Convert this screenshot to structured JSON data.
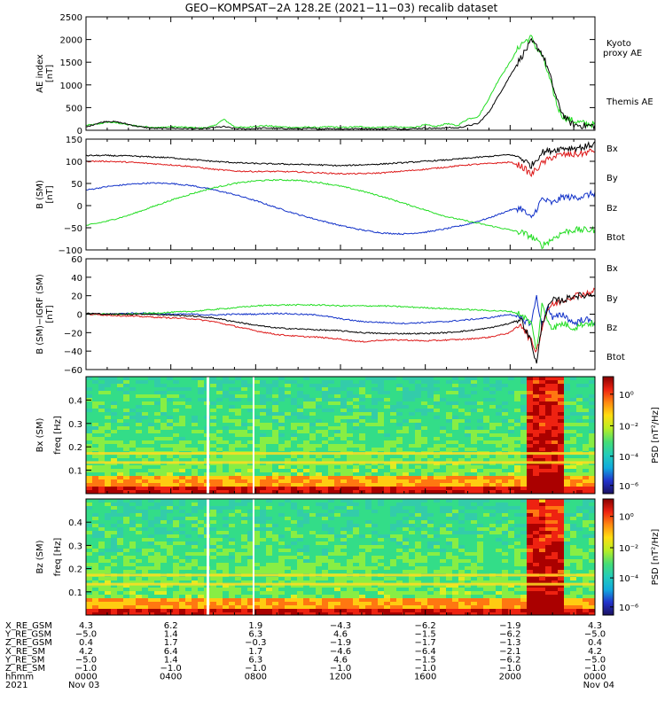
{
  "title": "GEO−KOMPSAT−2A 128.2E (2021−11−03) recalib dataset",
  "colors": {
    "kyoto": "#22dd22",
    "themis": "#000000",
    "bx": "#1030c8",
    "by": "#22dd22",
    "bz": "#dd1818",
    "btot": "#000000"
  },
  "chart_data": [
    {
      "type": "line",
      "panel": "ae",
      "ylabel_top": "AE index",
      "ylabel_unit": "[nT]",
      "yticks": [
        0,
        500,
        1000,
        1500,
        2000,
        2500
      ],
      "ylim": [
        0,
        2500
      ],
      "xlim_hours": [
        0,
        24
      ],
      "legend": [
        {
          "label": "Kyoto\nproxy AE",
          "color_key": "kyoto"
        },
        {
          "label": "Themis AE",
          "color_key": "themis"
        }
      ],
      "series": [
        {
          "name": "Kyoto proxy AE",
          "color_key": "kyoto",
          "x": [
            0,
            0.5,
            1,
            1.5,
            2,
            2.5,
            3,
            3.5,
            4,
            4.5,
            5,
            5.5,
            6,
            6.5,
            7,
            7.5,
            8,
            8.5,
            9,
            9.5,
            10,
            10.5,
            11,
            11.5,
            12,
            12.5,
            13,
            13.5,
            14,
            14.5,
            15,
            15.5,
            16,
            16.5,
            17,
            17.5,
            18,
            18.5,
            19,
            19.5,
            20,
            20.5,
            21,
            21.25,
            21.5,
            21.75,
            22,
            22.25,
            22.5,
            22.75,
            23,
            23.5,
            24
          ],
          "y": [
            110,
            130,
            180,
            160,
            120,
            90,
            70,
            60,
            80,
            70,
            60,
            50,
            90,
            240,
            80,
            60,
            90,
            100,
            80,
            70,
            60,
            70,
            60,
            80,
            60,
            70,
            80,
            60,
            70,
            80,
            60,
            70,
            120,
            80,
            150,
            100,
            250,
            300,
            700,
            1150,
            1500,
            1900,
            2050,
            1800,
            1650,
            1300,
            900,
            500,
            300,
            250,
            200,
            150,
            130
          ]
        },
        {
          "name": "Themis AE",
          "color_key": "themis",
          "x": [
            0,
            0.5,
            1,
            1.5,
            2,
            2.5,
            3,
            3.5,
            4,
            4.5,
            5,
            5.5,
            6,
            6.5,
            7,
            7.5,
            8,
            8.5,
            9,
            9.5,
            10,
            10.5,
            11,
            11.5,
            12,
            12.5,
            13,
            13.5,
            14,
            14.5,
            15,
            15.5,
            16,
            16.5,
            17,
            17.5,
            18,
            18.5,
            19,
            19.5,
            20,
            20.5,
            21,
            21.25,
            21.5,
            21.75,
            22,
            22.25,
            22.5,
            22.75,
            23,
            23.5,
            24
          ],
          "y": [
            70,
            150,
            200,
            180,
            130,
            80,
            50,
            40,
            50,
            40,
            40,
            30,
            60,
            80,
            40,
            30,
            40,
            50,
            40,
            40,
            30,
            40,
            30,
            40,
            30,
            30,
            40,
            30,
            30,
            40,
            30,
            40,
            50,
            40,
            60,
            50,
            100,
            150,
            400,
            800,
            1200,
            1600,
            1950,
            1850,
            1700,
            1400,
            1000,
            600,
            350,
            200,
            120,
            100,
            100
          ]
        }
      ]
    },
    {
      "type": "line",
      "panel": "bsm",
      "ylabel_top": "B (SM)",
      "ylabel_unit": "[nT]",
      "yticks": [
        -100,
        -50,
        0,
        50,
        100,
        150
      ],
      "ylim": [
        -100,
        150
      ],
      "xlim_hours": [
        0,
        24
      ],
      "legend": [
        {
          "label": "Bx",
          "color_key": "bx"
        },
        {
          "label": "By",
          "color_key": "by"
        },
        {
          "label": "Bz",
          "color_key": "bz"
        },
        {
          "label": "Btot",
          "color_key": "btot"
        }
      ],
      "series": [
        {
          "name": "Bx",
          "color_key": "bx",
          "x": [
            0,
            1,
            2,
            3,
            4,
            5,
            6,
            7,
            8,
            9,
            10,
            11,
            12,
            13,
            14,
            15,
            16,
            17,
            18,
            19,
            20,
            20.5,
            21,
            21.5,
            22,
            22.5,
            23,
            23.5,
            24
          ],
          "y": [
            35,
            43,
            48,
            51,
            50,
            45,
            36,
            25,
            11,
            -5,
            -20,
            -33,
            -45,
            -55,
            -62,
            -64,
            -60,
            -52,
            -42,
            -28,
            -10,
            -5,
            -30,
            15,
            5,
            20,
            18,
            22,
            28
          ]
        },
        {
          "name": "By",
          "color_key": "by",
          "x": [
            0,
            1,
            2,
            3,
            4,
            5,
            6,
            7,
            8,
            9,
            10,
            11,
            12,
            13,
            14,
            15,
            16,
            17,
            18,
            19,
            20,
            20.5,
            21,
            21.5,
            22,
            22.5,
            23,
            23.5,
            24
          ],
          "y": [
            -45,
            -35,
            -22,
            -5,
            12,
            27,
            40,
            50,
            56,
            58,
            57,
            52,
            44,
            33,
            20,
            5,
            -10,
            -25,
            -35,
            -45,
            -55,
            -60,
            -70,
            -90,
            -75,
            -60,
            -55,
            -55,
            -55
          ]
        },
        {
          "name": "Bz",
          "color_key": "bz",
          "x": [
            0,
            1,
            2,
            3,
            4,
            5,
            6,
            7,
            8,
            9,
            10,
            11,
            12,
            13,
            14,
            15,
            16,
            17,
            18,
            19,
            20,
            20.5,
            21,
            21.5,
            22,
            22.5,
            23,
            23.5,
            24
          ],
          "y": [
            100,
            100,
            98,
            95,
            92,
            88,
            82,
            78,
            77,
            77,
            76,
            74,
            72,
            72,
            74,
            78,
            82,
            87,
            92,
            95,
            98,
            90,
            70,
            95,
            110,
            115,
            115,
            118,
            125
          ]
        },
        {
          "name": "Btot",
          "color_key": "btot",
          "x": [
            0,
            1,
            2,
            3,
            4,
            5,
            6,
            7,
            8,
            9,
            10,
            11,
            12,
            13,
            14,
            15,
            16,
            17,
            18,
            19,
            20,
            20.5,
            21,
            21.5,
            22,
            22.5,
            23,
            23.5,
            24
          ],
          "y": [
            113,
            113,
            112,
            110,
            108,
            104,
            100,
            97,
            95,
            94,
            93,
            92,
            90,
            92,
            94,
            97,
            100,
            103,
            107,
            111,
            115,
            108,
            90,
            120,
            125,
            130,
            130,
            132,
            140
          ]
        }
      ]
    },
    {
      "type": "line",
      "panel": "bigrf",
      "ylabel_top": "B (SM)−IGRF (SM)",
      "ylabel_unit": "[nT]",
      "yticks": [
        -60,
        -40,
        -20,
        0,
        20,
        40,
        60
      ],
      "ylim": [
        -60,
        60
      ],
      "xlim_hours": [
        0,
        24
      ],
      "legend": [
        {
          "label": "Bx",
          "color_key": "bx"
        },
        {
          "label": "By",
          "color_key": "by"
        },
        {
          "label": "Bz",
          "color_key": "bz"
        },
        {
          "label": "Btot",
          "color_key": "btot"
        }
      ],
      "series": [
        {
          "name": "Bx",
          "color_key": "bx",
          "x": [
            0,
            1,
            2,
            3,
            4,
            5,
            6,
            7,
            8,
            9,
            10,
            11,
            12,
            13,
            14,
            15,
            16,
            17,
            18,
            19,
            20,
            20.5,
            21,
            21.25,
            21.5,
            21.75,
            22,
            22.5,
            23,
            23.5,
            24
          ],
          "y": [
            0,
            0,
            1,
            1,
            0,
            0,
            -1,
            0,
            0,
            1,
            0,
            -1,
            -5,
            -8,
            -9,
            -10,
            -9,
            -8,
            -6,
            -4,
            0,
            -5,
            -10,
            20,
            -15,
            10,
            -5,
            0,
            -10,
            -5,
            -10
          ]
        },
        {
          "name": "By",
          "color_key": "by",
          "x": [
            0,
            1,
            2,
            3,
            4,
            5,
            6,
            7,
            8,
            9,
            10,
            11,
            12,
            13,
            14,
            15,
            16,
            17,
            18,
            19,
            20,
            20.5,
            21,
            21.25,
            21.5,
            21.75,
            22,
            22.5,
            23,
            23.5,
            24
          ],
          "y": [
            0,
            0,
            0,
            1,
            2,
            3,
            5,
            7,
            9,
            10,
            10,
            10,
            9,
            9,
            9,
            8,
            7,
            6,
            5,
            4,
            3,
            0,
            -10,
            -40,
            10,
            -5,
            -15,
            -10,
            -15,
            -10,
            -10
          ]
        },
        {
          "name": "Bz",
          "color_key": "bz",
          "x": [
            0,
            1,
            2,
            3,
            4,
            5,
            6,
            7,
            8,
            9,
            10,
            11,
            12,
            13,
            14,
            15,
            16,
            17,
            18,
            19,
            20,
            20.5,
            21,
            21.25,
            21.5,
            21.75,
            22,
            22.5,
            23,
            23.5,
            24
          ],
          "y": [
            0,
            -1,
            -2,
            -3,
            -4,
            -5,
            -8,
            -13,
            -18,
            -22,
            -24,
            -25,
            -27,
            -30,
            -28,
            -28,
            -29,
            -28,
            -27,
            -25,
            -20,
            -10,
            -30,
            -40,
            -15,
            5,
            10,
            15,
            20,
            22,
            25
          ]
        },
        {
          "name": "Btot",
          "color_key": "btot",
          "x": [
            0,
            1,
            2,
            3,
            4,
            5,
            6,
            7,
            8,
            9,
            10,
            11,
            12,
            13,
            14,
            15,
            16,
            17,
            18,
            19,
            20,
            20.5,
            21,
            21.25,
            21.5,
            21.75,
            22,
            22.5,
            23,
            23.5,
            24
          ],
          "y": [
            1,
            0,
            0,
            0,
            -1,
            -2,
            -4,
            -8,
            -12,
            -15,
            -16,
            -17,
            -18,
            -20,
            -21,
            -21,
            -21,
            -20,
            -18,
            -15,
            -10,
            -5,
            -30,
            -55,
            -10,
            5,
            15,
            15,
            20,
            20,
            22
          ]
        }
      ]
    },
    {
      "type": "heatmap",
      "panel": "specx",
      "ylabel_outer": "Bx (SM)",
      "ylabel_inner": "freq [Hz]",
      "yticks": [
        0.1,
        0.2,
        0.3,
        0.4
      ],
      "ylim": [
        0,
        0.5
      ],
      "xlim_hours": [
        0,
        24
      ],
      "harmonic_lines_hz": [
        0.133,
        0.172
      ],
      "gap_lines_hours": [
        5.75,
        7.9
      ],
      "storm_hours": [
        20.5,
        22.5
      ],
      "colorbar": {
        "label": "PSD [nT²/Hz]",
        "ticks": [
          "10⁰",
          "10⁻²",
          "10⁻⁴",
          "10⁻⁶"
        ]
      }
    },
    {
      "type": "heatmap",
      "panel": "specz",
      "ylabel_outer": "Bz (SM)",
      "ylabel_inner": "freq [Hz]",
      "yticks": [
        0.1,
        0.2,
        0.3,
        0.4
      ],
      "ylim": [
        0,
        0.5
      ],
      "xlim_hours": [
        0,
        24
      ],
      "harmonic_lines_hz": [
        0.133,
        0.172
      ],
      "gap_lines_hours": [
        5.75,
        7.9
      ],
      "storm_hours": [
        20.5,
        22.5
      ],
      "colorbar": {
        "label": "PSD [nT²/Hz]",
        "ticks": [
          "10⁰",
          "10⁻²",
          "10⁻⁴",
          "10⁻⁶"
        ]
      }
    }
  ],
  "ephemeris": {
    "row_labels": [
      "X_RE_GSM",
      "Y_RE_GSM",
      "Z_RE_GSM",
      "X_RE_SM",
      "Y_RE_SM",
      "Z_RE_SM",
      "hhmm",
      "2021"
    ],
    "tick_hours": [
      0,
      4,
      8,
      12,
      16,
      20,
      24
    ],
    "columns": [
      [
        "4.3",
        "-5.0",
        "0.4",
        "4.2",
        "-5.0",
        "-1.0",
        "0000",
        "Nov 03"
      ],
      [
        "6.2",
        "1.4",
        "1.7",
        "6.4",
        "1.4",
        "-1.0",
        "0400",
        ""
      ],
      [
        "1.9",
        "6.3",
        "-0.3",
        "1.7",
        "6.3",
        "-1.0",
        "0800",
        ""
      ],
      [
        "-4.3",
        "4.6",
        "-1.9",
        "-4.6",
        "4.6",
        "-1.0",
        "1200",
        ""
      ],
      [
        "-6.2",
        "-1.5",
        "-1.7",
        "-6.4",
        "-1.5",
        "-1.0",
        "1600",
        ""
      ],
      [
        "-1.9",
        "-6.2",
        "-1.3",
        "-2.1",
        "-6.2",
        "-1.0",
        "2000",
        ""
      ],
      [
        "4.3",
        "-5.0",
        "0.4",
        "4.2",
        "-5.0",
        "-1.0",
        "0000",
        "Nov 04"
      ]
    ]
  }
}
